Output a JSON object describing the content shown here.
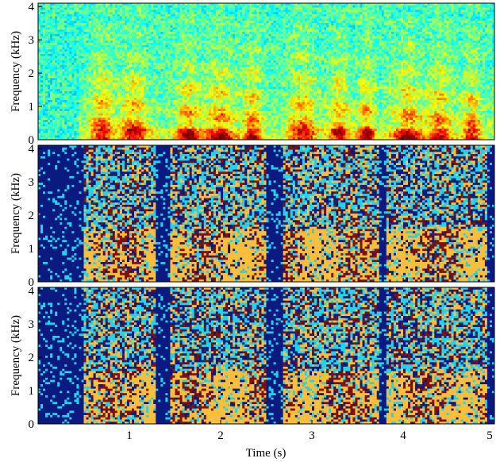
{
  "chart_data": [
    {
      "type": "heatmap",
      "panel": "spectrogram",
      "title": "",
      "xlabel": "",
      "ylabel": "Frequency (kHz)",
      "xlim": [
        0,
        5
      ],
      "ylim": [
        0,
        4.1
      ],
      "xticks": [
        1,
        2,
        3,
        4,
        5
      ],
      "xtick_labels_shown": false,
      "yticks": [
        0,
        1,
        2,
        3,
        4
      ],
      "colormap": "jet",
      "grid": false
    },
    {
      "type": "heatmap",
      "panel": "cluster-labels",
      "title": "",
      "xlabel": "",
      "ylabel": "Frequency (kHz)",
      "xlim": [
        0,
        5
      ],
      "ylim": [
        0,
        4.1
      ],
      "xticks": [
        1,
        2,
        3,
        4,
        5
      ],
      "xtick_labels_shown": false,
      "yticks": [
        0,
        1,
        2,
        3,
        4
      ],
      "class_colors": [
        "#0b1a80",
        "#22d3ee",
        "#fbbf3c",
        "#7f1010"
      ],
      "grid": false
    },
    {
      "type": "heatmap",
      "panel": "cluster-labels",
      "title": "",
      "xlabel": "Time (s)",
      "ylabel": "Frequency (kHz)",
      "xlim": [
        0,
        5
      ],
      "ylim": [
        0,
        4.1
      ],
      "xticks": [
        1,
        2,
        3,
        4,
        5
      ],
      "xtick_labels_shown": true,
      "yticks": [
        0,
        1,
        2,
        3,
        4
      ],
      "class_colors": [
        "#0b1a80",
        "#22d3ee",
        "#fbbf3c",
        "#7f1010"
      ],
      "grid": false
    }
  ],
  "labels": {
    "ylabel": "Frequency (kHz)",
    "xlabel": "Time (s)",
    "xticks": [
      "1",
      "2",
      "3",
      "4",
      "5"
    ],
    "yticks": [
      "0",
      "1",
      "2",
      "3",
      "4"
    ]
  }
}
